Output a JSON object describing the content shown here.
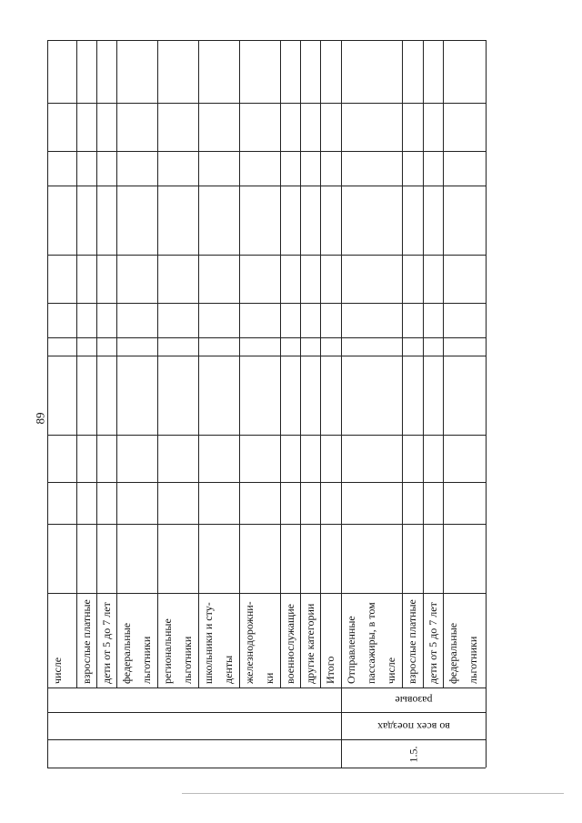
{
  "page_number": "89",
  "row_labels": [
    {
      "lines": [
        "числе"
      ]
    },
    {
      "lines": [
        "взрослые платные"
      ]
    },
    {
      "lines": [
        "дети  от 5 до 7 лет"
      ]
    },
    {
      "lines": [
        "федеральные",
        "льготники"
      ]
    },
    {
      "lines": [
        "региональные",
        "льготники"
      ]
    },
    {
      "lines": [
        "школьники и сту-",
        "денты"
      ]
    },
    {
      "lines": [
        "железнодорожни-",
        "ки"
      ]
    },
    {
      "lines": [
        "военнослужащие"
      ]
    },
    {
      "lines": [
        "другие категории"
      ]
    },
    {
      "lines": [
        "Итого"
      ]
    },
    {
      "lines": [
        "Отправленные",
        "пассажиры, в том",
        "числе"
      ]
    },
    {
      "lines": [
        "взрослые платные"
      ]
    },
    {
      "lines": [
        "дети  от 5 до 7 лет"
      ]
    },
    {
      "lines": [
        "федеральные",
        "льготники"
      ]
    }
  ],
  "section": {
    "ticket_type": "разовые",
    "trains": "во всех поездах",
    "number": "1.5."
  }
}
